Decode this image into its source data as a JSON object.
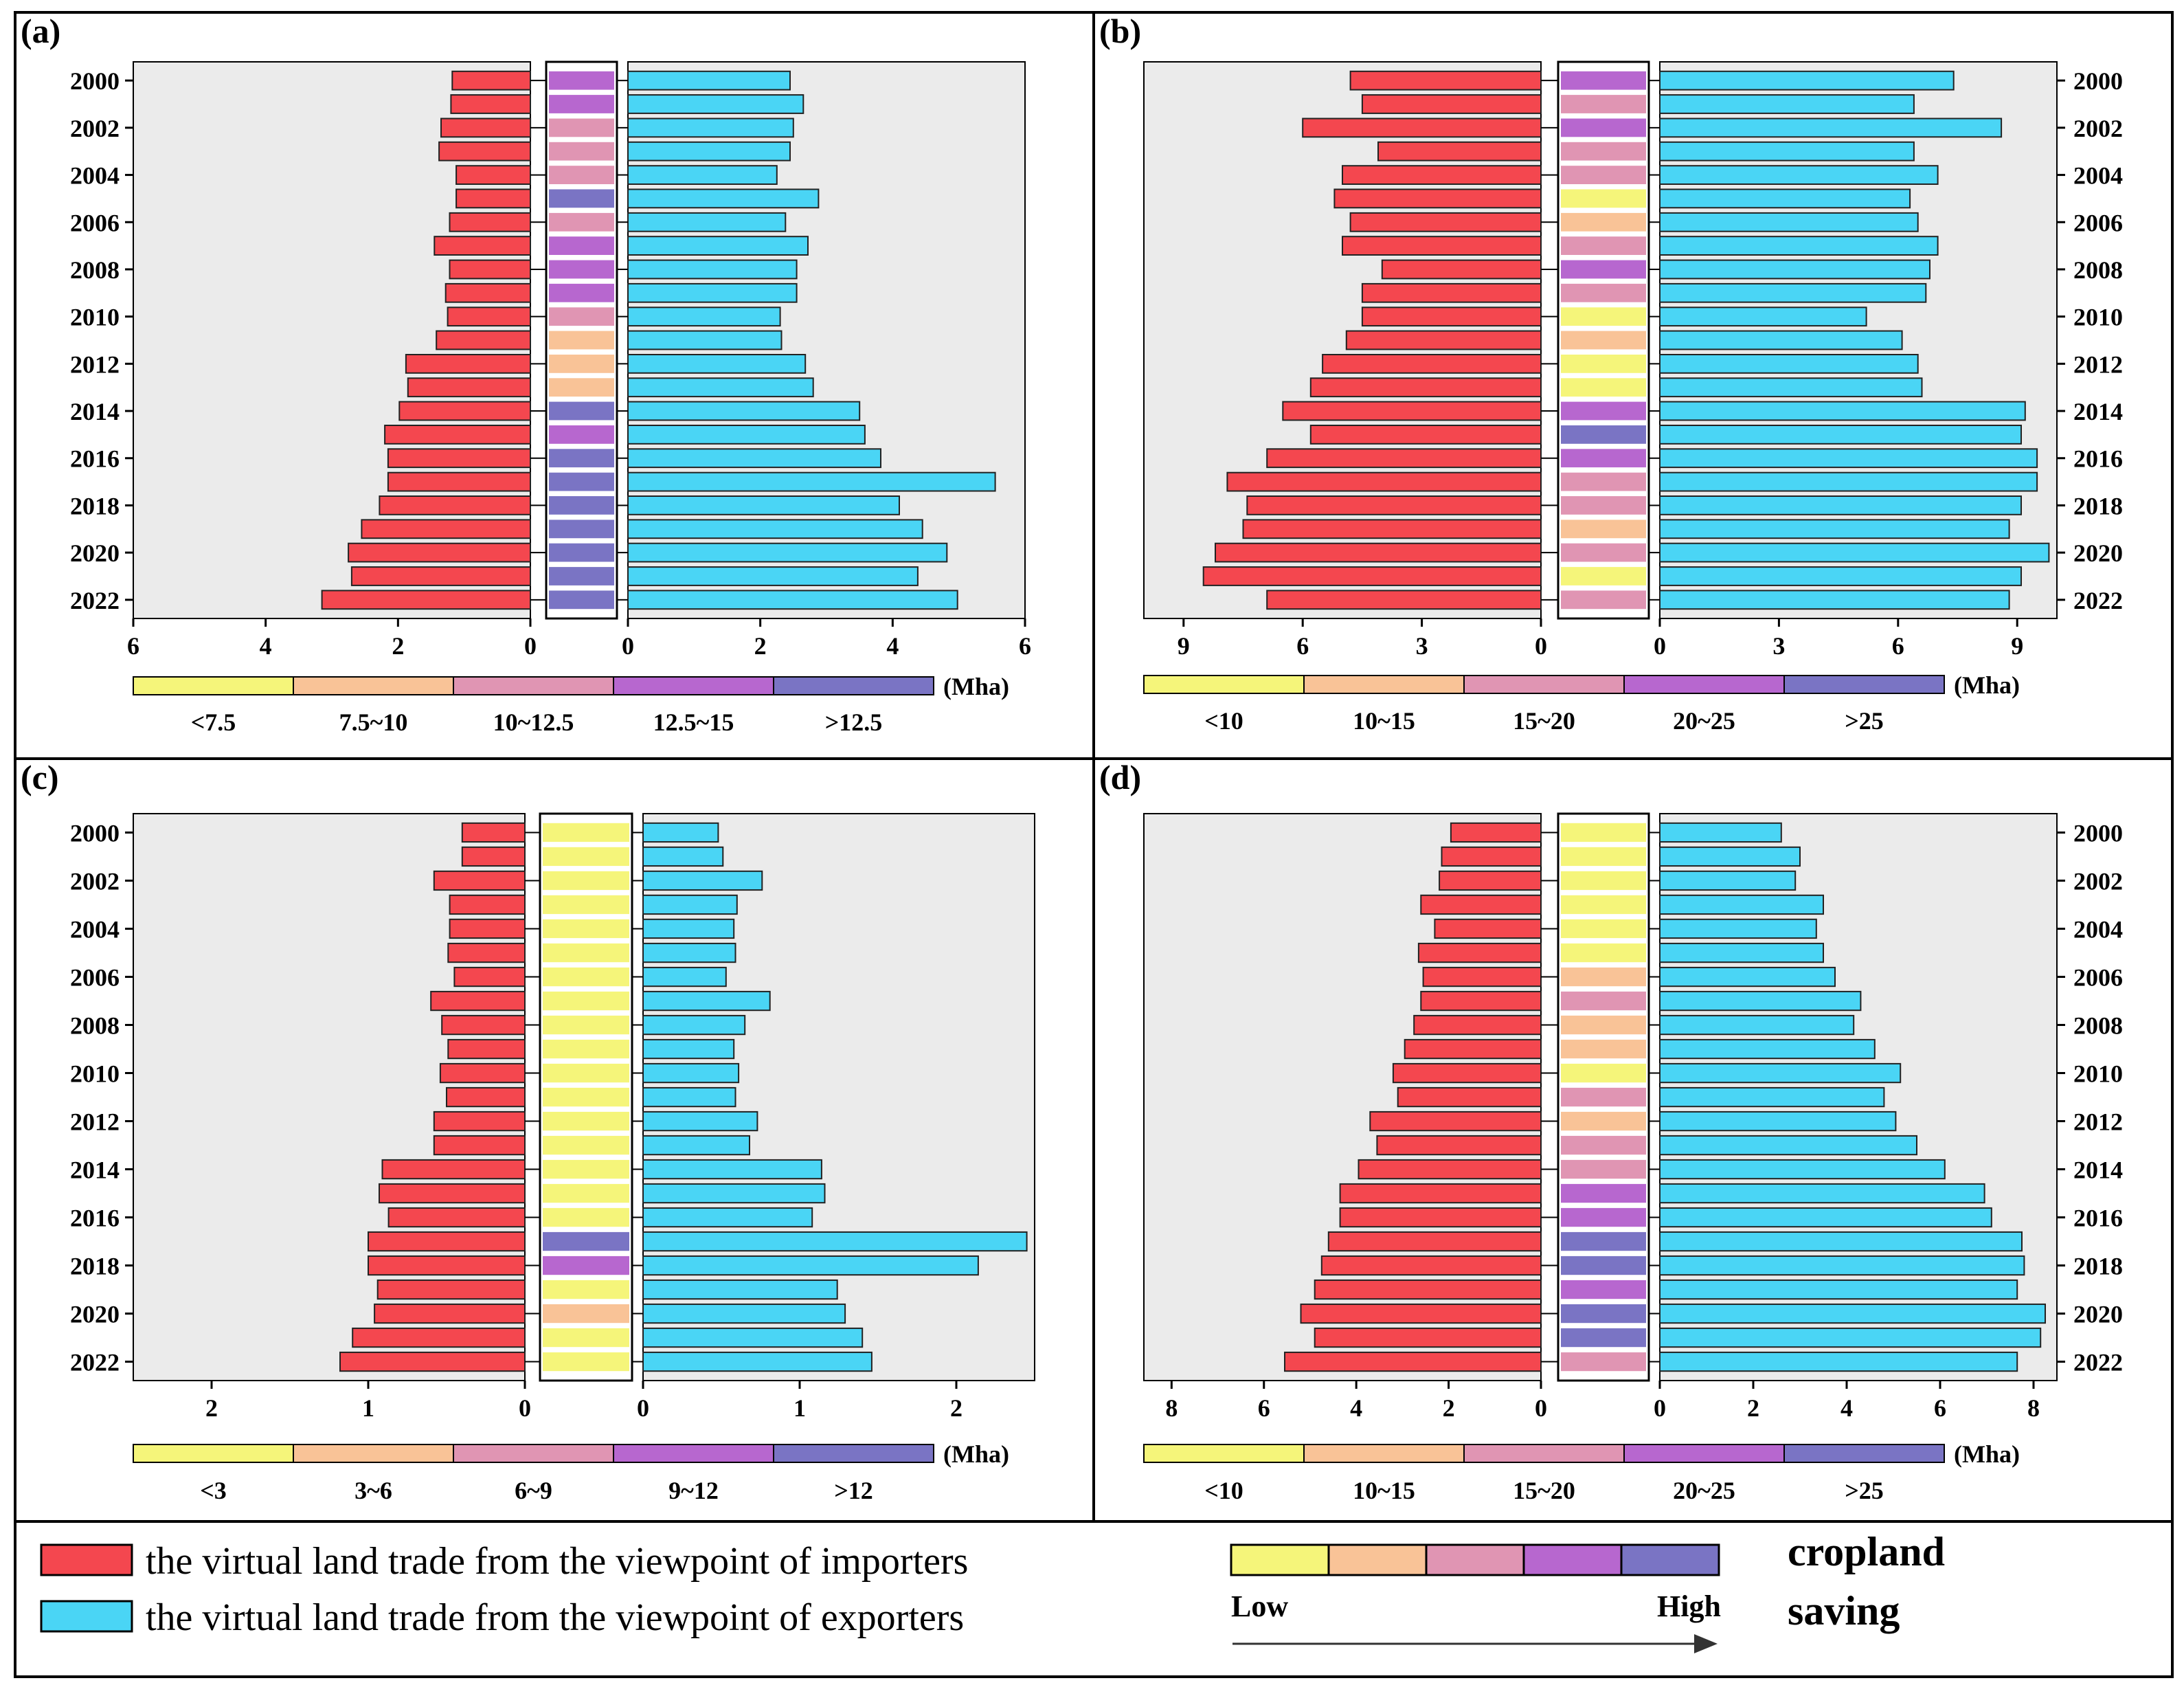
{
  "units_label": "(Mha)",
  "years": [
    "2000",
    "2001",
    "2002",
    "2003",
    "2004",
    "2005",
    "2006",
    "2007",
    "2008",
    "2009",
    "2010",
    "2011",
    "2012",
    "2013",
    "2014",
    "2015",
    "2016",
    "2017",
    "2018",
    "2019",
    "2020",
    "2021",
    "2022"
  ],
  "palette": [
    "#f5f57a",
    "#f9c397",
    "#e095b3",
    "#b767cf",
    "#7a74c4"
  ],
  "importer_color": "#f4474f",
  "exporter_color": "#4ad5f5",
  "chart_data": [
    {
      "panel": "(a)",
      "type": "bar",
      "orientation": "horizontal-mirrored",
      "year_label_side": "left",
      "left_axis": {
        "max": 6,
        "ticks": [
          6,
          4,
          2,
          0
        ]
      },
      "right_axis": {
        "max": 6,
        "ticks": [
          0,
          2,
          4,
          6
        ]
      },
      "series": [
        {
          "name": "importers",
          "values": [
            1.18,
            1.2,
            1.35,
            1.38,
            1.12,
            1.12,
            1.22,
            1.45,
            1.22,
            1.28,
            1.25,
            1.42,
            1.88,
            1.85,
            1.98,
            2.2,
            2.15,
            2.15,
            2.28,
            2.55,
            2.75,
            2.7,
            3.15
          ]
        },
        {
          "name": "exporters",
          "values": [
            2.45,
            2.65,
            2.5,
            2.45,
            2.25,
            2.88,
            2.38,
            2.72,
            2.55,
            2.55,
            2.3,
            2.32,
            2.68,
            2.8,
            3.5,
            3.58,
            3.82,
            5.55,
            4.1,
            4.45,
            4.82,
            4.38,
            4.98
          ]
        }
      ],
      "saving_levels": [
        3,
        3,
        2,
        2,
        2,
        4,
        2,
        3,
        3,
        3,
        2,
        1,
        1,
        1,
        4,
        3,
        4,
        4,
        4,
        4,
        4,
        4,
        4
      ],
      "legend_labels": [
        "<7.5",
        "7.5~10",
        "10~12.5",
        "12.5~15",
        ">12.5"
      ]
    },
    {
      "panel": "(b)",
      "type": "bar",
      "orientation": "horizontal-mirrored",
      "year_label_side": "right",
      "left_axis": {
        "max": 10,
        "ticks": [
          9,
          6,
          3,
          0
        ]
      },
      "right_axis": {
        "max": 10,
        "ticks": [
          0,
          3,
          6,
          9
        ]
      },
      "series": [
        {
          "name": "importers",
          "values": [
            4.8,
            4.5,
            6.0,
            4.1,
            5.0,
            5.2,
            4.8,
            5.0,
            4.0,
            4.5,
            4.5,
            4.9,
            5.5,
            5.8,
            6.5,
            5.8,
            6.9,
            7.9,
            7.4,
            7.5,
            8.2,
            8.5,
            6.9
          ]
        },
        {
          "name": "exporters",
          "values": [
            7.4,
            6.4,
            8.6,
            6.4,
            7.0,
            6.3,
            6.5,
            7.0,
            6.8,
            6.7,
            5.2,
            6.1,
            6.5,
            6.6,
            9.2,
            9.1,
            9.5,
            9.5,
            9.1,
            8.8,
            9.8,
            9.1,
            8.8
          ]
        }
      ],
      "saving_levels": [
        3,
        2,
        3,
        2,
        2,
        0,
        1,
        2,
        3,
        2,
        0,
        1,
        0,
        0,
        3,
        4,
        3,
        2,
        2,
        1,
        2,
        0,
        2
      ],
      "legend_labels": [
        "<10",
        "10~15",
        "15~20",
        "20~25",
        ">25"
      ]
    },
    {
      "panel": "(c)",
      "type": "bar",
      "orientation": "horizontal-mirrored",
      "year_label_side": "left",
      "left_axis": {
        "max": 2.5,
        "ticks": [
          2,
          1,
          0
        ]
      },
      "right_axis": {
        "max": 2.5,
        "ticks": [
          0,
          1,
          2
        ]
      },
      "series": [
        {
          "name": "importers",
          "values": [
            0.4,
            0.4,
            0.58,
            0.48,
            0.48,
            0.49,
            0.45,
            0.6,
            0.53,
            0.49,
            0.54,
            0.5,
            0.58,
            0.58,
            0.91,
            0.93,
            0.87,
            1.0,
            1.0,
            0.94,
            0.96,
            1.1,
            1.18
          ]
        },
        {
          "name": "exporters",
          "values": [
            0.48,
            0.51,
            0.76,
            0.6,
            0.58,
            0.59,
            0.53,
            0.81,
            0.65,
            0.58,
            0.61,
            0.59,
            0.73,
            0.68,
            1.14,
            1.16,
            1.08,
            2.45,
            2.14,
            1.24,
            1.29,
            1.4,
            1.46
          ]
        }
      ],
      "saving_levels": [
        0,
        0,
        0,
        0,
        0,
        0,
        0,
        0,
        0,
        0,
        0,
        0,
        0,
        0,
        0,
        0,
        0,
        4,
        3,
        0,
        1,
        0,
        0
      ],
      "legend_labels": [
        "<3",
        "3~6",
        "6~9",
        "9~12",
        ">12"
      ]
    },
    {
      "panel": "(d)",
      "type": "bar",
      "orientation": "horizontal-mirrored",
      "year_label_side": "right",
      "left_axis": {
        "max": 8.6,
        "ticks": [
          8,
          6,
          4,
          2,
          0
        ]
      },
      "right_axis": {
        "max": 8.5,
        "ticks": [
          0,
          2,
          4,
          6,
          8
        ]
      },
      "series": [
        {
          "name": "importers",
          "values": [
            1.95,
            2.15,
            2.2,
            2.6,
            2.3,
            2.65,
            2.55,
            2.6,
            2.75,
            2.95,
            3.2,
            3.1,
            3.7,
            3.55,
            3.95,
            4.35,
            4.35,
            4.6,
            4.75,
            4.9,
            5.2,
            4.9,
            5.55
          ]
        },
        {
          "name": "exporters",
          "values": [
            2.6,
            3.0,
            2.9,
            3.5,
            3.35,
            3.5,
            3.75,
            4.3,
            4.15,
            4.6,
            5.15,
            4.8,
            5.05,
            5.5,
            6.1,
            6.95,
            7.1,
            7.75,
            7.8,
            7.65,
            8.25,
            8.15,
            7.65
          ]
        }
      ],
      "saving_levels": [
        0,
        0,
        0,
        0,
        0,
        0,
        1,
        2,
        1,
        1,
        0,
        2,
        1,
        2,
        2,
        3,
        3,
        4,
        4,
        3,
        4,
        4,
        2
      ],
      "legend_labels": [
        "<10",
        "10~15",
        "15~20",
        "20~25",
        ">25"
      ]
    }
  ],
  "legend": {
    "importers_text": "the virtual land trade from the viewpoint of importers",
    "exporters_text": "the virtual land trade from the viewpoint of exporters",
    "low_label": "Low",
    "high_label": "High",
    "title_line1": "cropland",
    "title_line2": "saving"
  }
}
